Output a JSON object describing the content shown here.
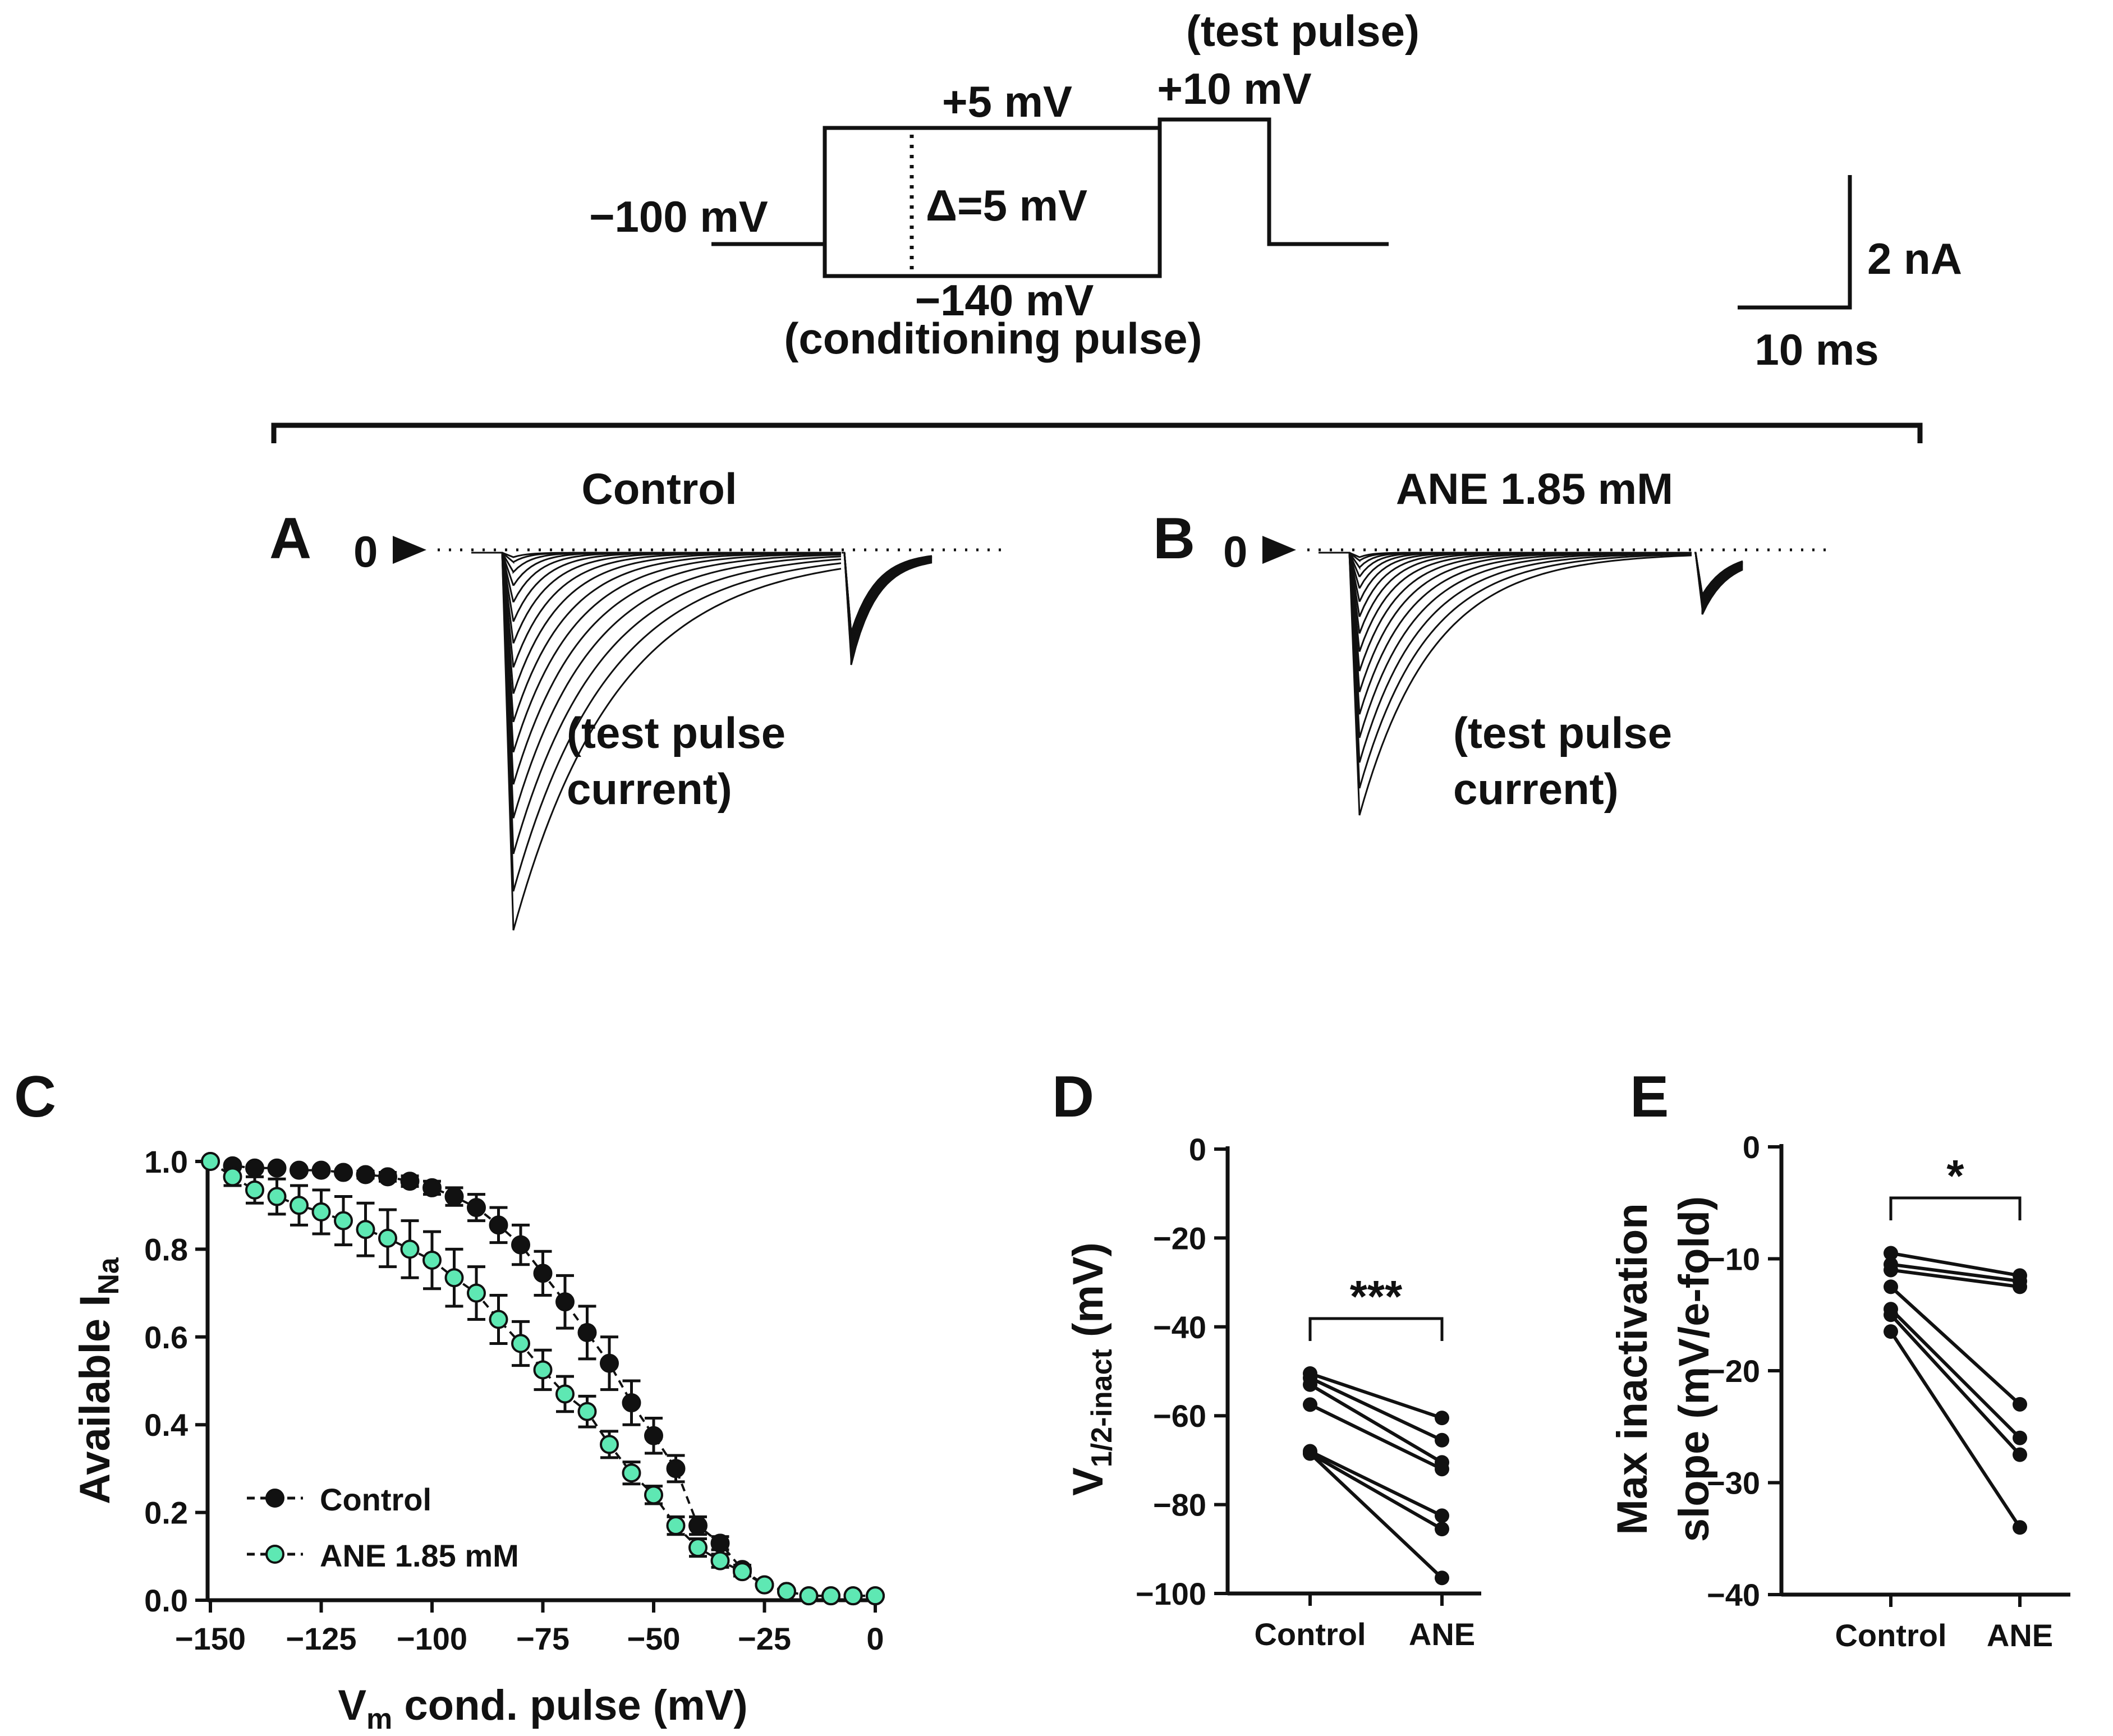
{
  "protocol": {
    "test_pulse_label": "(test pulse)",
    "test_voltage": "+10 mV",
    "cond_top": "+5 mV",
    "delta": "Δ=5 mV",
    "holding": "−100 mV",
    "cond_bottom": "−140 mV",
    "cond_label": "(conditioning pulse)"
  },
  "scalebar": {
    "current": "2 nA",
    "time": "10 ms"
  },
  "panelA": {
    "letter": "A",
    "title": "Control",
    "zero": "0",
    "annotation_line1": "(test pulse",
    "annotation_line2": "current)"
  },
  "panelB": {
    "letter": "B",
    "title": "ANE 1.85 mM",
    "zero": "0",
    "annotation_line1": "(test pulse",
    "annotation_line2": "current)"
  },
  "colors": {
    "control": "#111111",
    "ane": "#5ee8b3",
    "line": "#111111"
  },
  "chart_data": [
    {
      "panel": "C",
      "type": "line",
      "title": "",
      "xlabel": "V",
      "xlabel_sub": "m",
      "xlabel_rest": " cond. pulse (mV)",
      "ylabel": "Available I",
      "ylabel_sub": "Na",
      "xlim": [
        -150,
        0
      ],
      "ylim": [
        0,
        1.0
      ],
      "xticks": [
        "−150",
        "−125",
        "−100",
        "−75",
        "−50",
        "−25",
        "0"
      ],
      "xtick_values": [
        -150,
        -125,
        -100,
        -75,
        -50,
        -25,
        0
      ],
      "yticks": [
        "0.0",
        "0.2",
        "0.4",
        "0.6",
        "0.8",
        "1.0"
      ],
      "ytick_values": [
        0,
        0.2,
        0.4,
        0.6,
        0.8,
        1.0
      ],
      "legend_position": "bottom-left",
      "x": [
        -150,
        -145,
        -140,
        -135,
        -130,
        -125,
        -120,
        -115,
        -110,
        -105,
        -100,
        -95,
        -90,
        -85,
        -80,
        -75,
        -70,
        -65,
        -60,
        -55,
        -50,
        -45,
        -40,
        -35,
        -30,
        -25,
        -20,
        -15,
        -10,
        -5,
        0
      ],
      "series": [
        {
          "name": "Control",
          "values": [
            1.0,
            0.99,
            0.985,
            0.985,
            0.98,
            0.98,
            0.975,
            0.97,
            0.965,
            0.955,
            0.94,
            0.92,
            0.895,
            0.855,
            0.81,
            0.745,
            0.68,
            0.61,
            0.54,
            0.45,
            0.375,
            0.3,
            0.17,
            0.13,
            0.07,
            0.035,
            0.02,
            0.01,
            0.01,
            0.01,
            0.01
          ],
          "errors": [
            0.0,
            0.005,
            0.005,
            0.005,
            0.005,
            0.005,
            0.005,
            0.008,
            0.01,
            0.012,
            0.015,
            0.02,
            0.03,
            0.04,
            0.045,
            0.05,
            0.06,
            0.06,
            0.06,
            0.05,
            0.04,
            0.03,
            0.02,
            0.015,
            0.01,
            0.005,
            0.005,
            0.0,
            0.0,
            0.0,
            0.0
          ]
        },
        {
          "name": "ANE 1.85 mM",
          "values": [
            1.0,
            0.965,
            0.935,
            0.92,
            0.9,
            0.885,
            0.865,
            0.845,
            0.825,
            0.8,
            0.775,
            0.735,
            0.7,
            0.64,
            0.585,
            0.525,
            0.47,
            0.43,
            0.355,
            0.29,
            0.24,
            0.17,
            0.12,
            0.09,
            0.065,
            0.035,
            0.02,
            0.01,
            0.01,
            0.01,
            0.01
          ],
          "errors": [
            0.0,
            0.02,
            0.03,
            0.04,
            0.045,
            0.05,
            0.055,
            0.06,
            0.065,
            0.065,
            0.065,
            0.065,
            0.06,
            0.055,
            0.05,
            0.045,
            0.04,
            0.035,
            0.03,
            0.025,
            0.02,
            0.02,
            0.02,
            0.015,
            0.01,
            0.005,
            0.005,
            0.0,
            0.0,
            0.0,
            0.0
          ]
        }
      ]
    },
    {
      "panel": "D",
      "type": "line",
      "ylabel": "V",
      "ylabel_sub": "1/2-inact",
      "ylabel_rest": " (mV)",
      "categories": [
        "Control",
        "ANE"
      ],
      "ylim": [
        -100,
        0
      ],
      "yticks": [
        "0",
        "−20",
        "−40",
        "−60",
        "−80",
        "−100"
      ],
      "ytick_values": [
        0,
        -20,
        -40,
        -60,
        -80,
        -100
      ],
      "significance": "***",
      "pairs": [
        [
          -50.5,
          -60.5
        ],
        [
          -51.5,
          -65.5
        ],
        [
          -53,
          -70.5
        ],
        [
          -57.5,
          -72
        ],
        [
          -68,
          -82.5
        ],
        [
          -68.5,
          -85.5
        ],
        [
          -68.5,
          -96.5
        ]
      ]
    },
    {
      "panel": "E",
      "type": "line",
      "ylabel": "Max inactivation",
      "ylabel_line2": "slope (mV/e-fold)",
      "categories": [
        "Control",
        "ANE"
      ],
      "ylim": [
        -40,
        0
      ],
      "yticks": [
        "0",
        "−10",
        "−20",
        "−30",
        "−40"
      ],
      "ytick_values": [
        0,
        -10,
        -20,
        -30,
        -40
      ],
      "significance": "*",
      "pairs": [
        [
          -9.5,
          -11.5
        ],
        [
          -10.5,
          -12
        ],
        [
          -11,
          -12.5
        ],
        [
          -12.5,
          -23
        ],
        [
          -14.5,
          -26
        ],
        [
          -15,
          -27.5
        ],
        [
          -16.5,
          -34
        ]
      ]
    }
  ]
}
